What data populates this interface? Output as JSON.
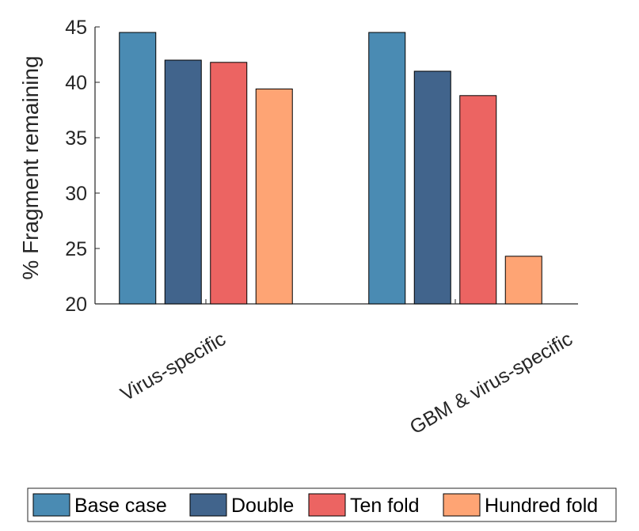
{
  "chart_data": {
    "type": "bar",
    "categories": [
      "Virus-specific",
      "GBM & virus-specific"
    ],
    "series": [
      {
        "name": "Base case",
        "values": [
          44.5,
          44.5
        ],
        "color": "#4a8bb3"
      },
      {
        "name": "Double",
        "values": [
          42.0,
          41.0
        ],
        "color": "#41648c"
      },
      {
        "name": "Ten fold",
        "values": [
          41.8,
          38.8
        ],
        "color": "#ec6462"
      },
      {
        "name": "Hundred fold",
        "values": [
          39.4,
          24.3
        ],
        "color": "#fea474"
      }
    ],
    "ylabel": "% Fragment remaining",
    "xlabel": "",
    "ylim": [
      20,
      45
    ],
    "yticks": [
      20,
      25,
      30,
      35,
      40,
      45
    ],
    "legend_position": "bottom",
    "grid": false
  }
}
